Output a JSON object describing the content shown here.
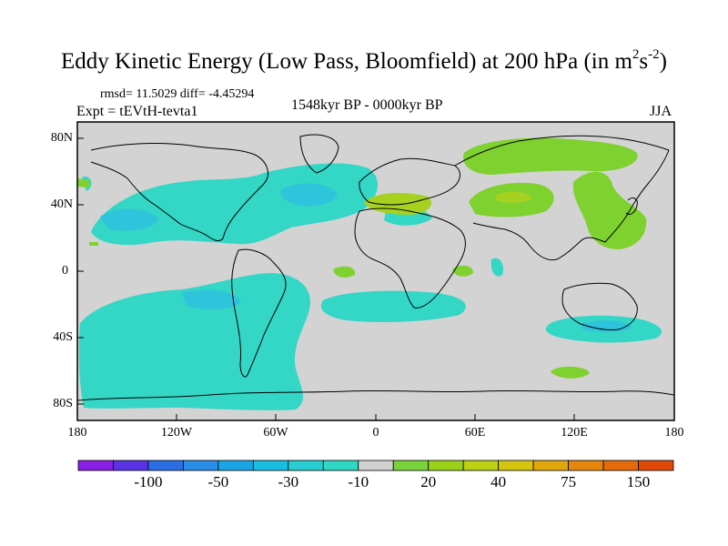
{
  "title": {
    "main": "Eddy Kinetic Energy (Low Pass, Bloomfield) at 200 hPa (in m",
    "sup1": "2",
    "mid": "s",
    "sup2": "-2",
    "close": ")"
  },
  "stats": "rmsd= 11.5029 diff= -4.45294",
  "expt": "Expt = tEVtH-tevta1",
  "period": "1548kyr BP - 0000kyr BP",
  "season": "JJA",
  "lat_labels": [
    "80N",
    "40N",
    "0",
    "40S",
    "80S"
  ],
  "lon_labels": [
    "180",
    "120W",
    "60W",
    "0",
    "60E",
    "120E",
    "180"
  ],
  "colorbar": {
    "colors": [
      "#8a1ee6",
      "#5a32e6",
      "#2a6ee6",
      "#2a8ee8",
      "#1aa6e6",
      "#19bfe3",
      "#27cdd2",
      "#2fd8c2",
      "#d0d0d0",
      "#7ad33a",
      "#9ad219",
      "#bcd014",
      "#d6c50f",
      "#e3a70e",
      "#e5870c",
      "#e56a09",
      "#e24908"
    ],
    "labels": [
      "-100",
      "-50",
      "-30",
      "-10",
      "20",
      "40",
      "75",
      "150"
    ]
  },
  "colors": {
    "background": "#d3d3d3",
    "negative": "#34d6c6",
    "strong_negative": "#2ec4dc",
    "positive": "#7fd12f",
    "strong_positive": "#a6d120"
  }
}
